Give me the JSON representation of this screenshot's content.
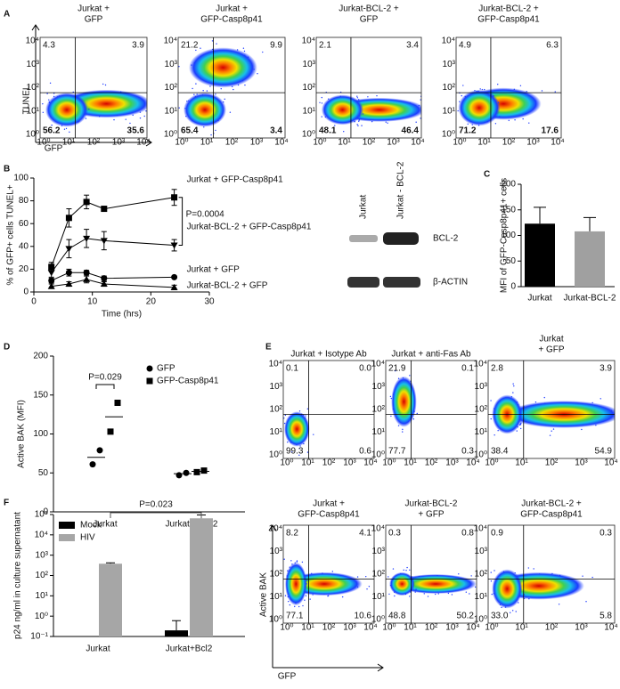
{
  "panel_labels": [
    "A",
    "B",
    "C",
    "D",
    "E",
    "F"
  ],
  "flow_A": {
    "x_label": "GFP",
    "y_label": "TUNEL",
    "plots": [
      {
        "title": [
          "Jurkat +",
          "GFP"
        ],
        "quadrants": [
          "4.3",
          "3.9",
          "56.2",
          "35.6"
        ]
      },
      {
        "title": [
          "Jurkat +",
          "GFP-Casp8p41"
        ],
        "quadrants": [
          "21.2",
          "9.9",
          "65.4",
          "3.4"
        ]
      },
      {
        "title": [
          "Jurkat-BCL-2 +",
          "GFP"
        ],
        "quadrants": [
          "2.1",
          "3.4",
          "48.1",
          "46.4"
        ]
      },
      {
        "title": [
          "Jurkat-BCL-2 +",
          "GFP-Casp8p41"
        ],
        "quadrants": [
          "4.9",
          "6.3",
          "71.2",
          "17.6"
        ]
      }
    ]
  },
  "flow_E": {
    "x_label": "GFP",
    "y_label": "Active BAK",
    "plots": [
      {
        "title": [
          "Jurkat + Isotype Ab"
        ],
        "quadrants": [
          "0.1",
          "0.0",
          "99.3",
          "0.6"
        ]
      },
      {
        "title": [
          "Jurkat + anti-Fas Ab"
        ],
        "quadrants": [
          "21.9",
          "0.1",
          "77.7",
          "0.3"
        ]
      },
      {
        "title": [
          "Jurkat",
          "+ GFP"
        ],
        "quadrants": [
          "2.8",
          "3.9",
          "38.4",
          "54.9"
        ]
      },
      {
        "title": [
          "Jurkat +",
          "GFP-Casp8p41"
        ],
        "quadrants": [
          "8.2",
          "4.1",
          "77.1",
          "10.6"
        ]
      },
      {
        "title": [
          "Jurkat-BCL-2",
          "+ GFP"
        ],
        "quadrants": [
          "0.3",
          "0.8",
          "48.8",
          "50.2"
        ]
      },
      {
        "title": [
          "Jurkat-BCL-2 +",
          "GFP-Casp8p41"
        ],
        "quadrants": [
          "0.9",
          "0.3",
          "33.0",
          "5.8"
        ]
      }
    ]
  },
  "flow_ticks": [
    "10⁰",
    "10¹",
    "10²",
    "10³",
    "10⁴"
  ],
  "western_blot": {
    "lanes": [
      "Jurkat",
      "Jurkat - BCL-2"
    ],
    "bands": [
      "BCL-2",
      "β-ACTIN"
    ]
  },
  "chart_data": [
    {
      "type": "line",
      "xlabel": "Time (hrs)",
      "ylabel": "% of GFP+ cells TUNEL+",
      "x": [
        3,
        6,
        9,
        12,
        24
      ],
      "xlim": [
        0,
        30
      ],
      "xticks": [
        0,
        10,
        20,
        30
      ],
      "ylim": [
        0,
        100
      ],
      "yticks": [
        0,
        20,
        40,
        60,
        80,
        100
      ],
      "series": [
        {
          "name": "Jurkat + GFP-Casp8p41",
          "color": "#000000",
          "marker": "square",
          "values": [
            22,
            65,
            79,
            73,
            83
          ],
          "errors": [
            4,
            8,
            6,
            1,
            7
          ]
        },
        {
          "name": "Jurkat-BCL-2 + GFP-Casp8p41",
          "color": "#000000",
          "marker": "triangle-down",
          "values": [
            17,
            38,
            47,
            45,
            41
          ],
          "errors": [
            4,
            8,
            8,
            8,
            5
          ]
        },
        {
          "name": "Jurkat + GFP",
          "color": "#000000",
          "marker": "circle",
          "values": [
            10,
            17,
            17,
            12,
            13
          ],
          "errors": [
            2,
            3,
            2,
            2,
            1
          ]
        },
        {
          "name": "Jurkat-BCL-2 + GFP",
          "color": "#000000",
          "marker": "triangle",
          "values": [
            5,
            7,
            11,
            7,
            4
          ],
          "errors": [
            2,
            2,
            3,
            2,
            2
          ]
        }
      ],
      "annotation": "P=0.0004"
    },
    {
      "type": "bar",
      "ylabel": "MFI of GFP-Casp8p41+ cells",
      "categories": [
        "Jurkat",
        "Jurkat-BCL-2"
      ],
      "values": [
        123,
        108
      ],
      "errors": [
        32,
        27
      ],
      "colors": [
        "#000000",
        "#a0a0a0"
      ],
      "ylim": [
        0,
        200
      ],
      "yticks": [
        0,
        50,
        100,
        150,
        200
      ]
    },
    {
      "type": "dot",
      "ylabel": "Active BAK (MFI)",
      "categories": [
        "Jurkat",
        "Jurkat-BCL-2"
      ],
      "ylim": [
        0,
        200
      ],
      "yticks": [
        0,
        50,
        100,
        150,
        200
      ],
      "series": [
        {
          "name": "GFP",
          "color": "#000000",
          "marker": "circle",
          "values": [
            [
              61,
              79
            ],
            [
              47,
              50
            ]
          ],
          "means": [
            70,
            49
          ]
        },
        {
          "name": "GFP-Casp8p41",
          "color": "#000000",
          "marker": "square",
          "values": [
            [
              103,
              140
            ],
            [
              51,
              53
            ]
          ],
          "means": [
            122,
            52
          ]
        }
      ],
      "annotation": "P=0.029"
    },
    {
      "type": "bar",
      "log_scale": true,
      "ylabel": "p24 ng/ml in culture supernatant",
      "categories": [
        "Jurkat",
        "Jurkat+Bcl2"
      ],
      "legend": "upper left",
      "ylim": [
        0.1,
        100000
      ],
      "yticks": [
        {
          "value": 0.1,
          "label": "10⁻¹"
        },
        {
          "value": 1,
          "label": "10⁰"
        },
        {
          "value": 10,
          "label": "10¹"
        },
        {
          "value": 100,
          "label": "10²"
        },
        {
          "value": 1000,
          "label": "10³"
        },
        {
          "value": 10000,
          "label": "10⁴"
        },
        {
          "value": 100000,
          "label": "10⁵"
        }
      ],
      "series": [
        {
          "name": "Mock",
          "color": "#000000",
          "values": [
            null,
            0.2
          ],
          "errors": [
            null,
            0.4
          ]
        },
        {
          "name": "HIV",
          "color": "#a6a6a6",
          "values": [
            380,
            65000
          ],
          "errors": [
            40,
            30000
          ]
        }
      ],
      "annotation": "P=0.023"
    }
  ]
}
